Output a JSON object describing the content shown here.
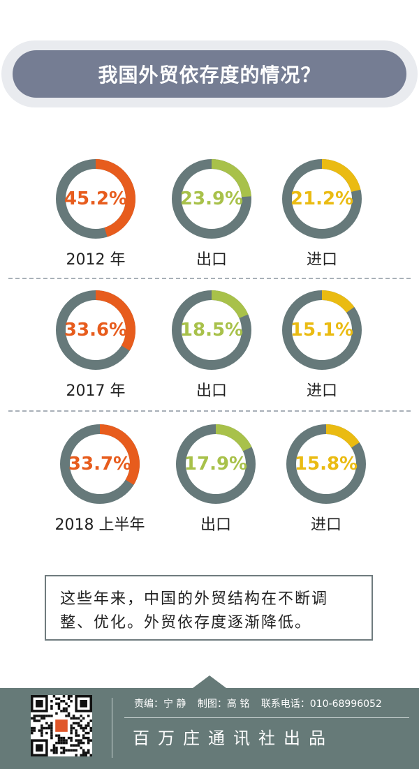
{
  "title": "我国外贸依存度的情况？",
  "colors": {
    "track": "#66797a",
    "total": "#e75c1d",
    "export": "#a8c14a",
    "import": "#eabb12"
  },
  "chart_data": [
    {
      "type": "pie",
      "row": "2012 年",
      "items": [
        {
          "name": "2012 年",
          "value": 45.2,
          "label": "45.2%",
          "color": "#e75c1d"
        },
        {
          "name": "出口",
          "value": 23.9,
          "label": "23.9%",
          "color": "#a8c14a"
        },
        {
          "name": "进口",
          "value": 21.2,
          "label": "21.2%",
          "color": "#eabb12"
        }
      ]
    },
    {
      "type": "pie",
      "row": "2017 年",
      "items": [
        {
          "name": "2017 年",
          "value": 33.6,
          "label": "33.6%",
          "color": "#e75c1d"
        },
        {
          "name": "出口",
          "value": 18.5,
          "label": "18.5%",
          "color": "#a8c14a"
        },
        {
          "name": "进口",
          "value": 15.1,
          "label": "15.1%",
          "color": "#eabb12"
        }
      ]
    },
    {
      "type": "pie",
      "row": "2018 上半年",
      "items": [
        {
          "name": "2018 上半年",
          "value": 33.7,
          "label": "33.7%",
          "color": "#e75c1d"
        },
        {
          "name": "出口",
          "value": 17.9,
          "label": "17.9%",
          "color": "#a8c14a"
        },
        {
          "name": "进口",
          "value": 15.8,
          "label": "15.8%",
          "color": "#eabb12"
        }
      ]
    }
  ],
  "summary": {
    "line1": "这些年来，中国的外贸结构在不断调",
    "line2": "整、优化。外贸依存度逐渐降低。"
  },
  "footer": {
    "editor": "责编：宁 静",
    "design": "制图：高 铭",
    "phone": "联系电话：010-68996052",
    "brand": "百万庄通讯社出品",
    "qr_icon": "qr-code-icon"
  }
}
